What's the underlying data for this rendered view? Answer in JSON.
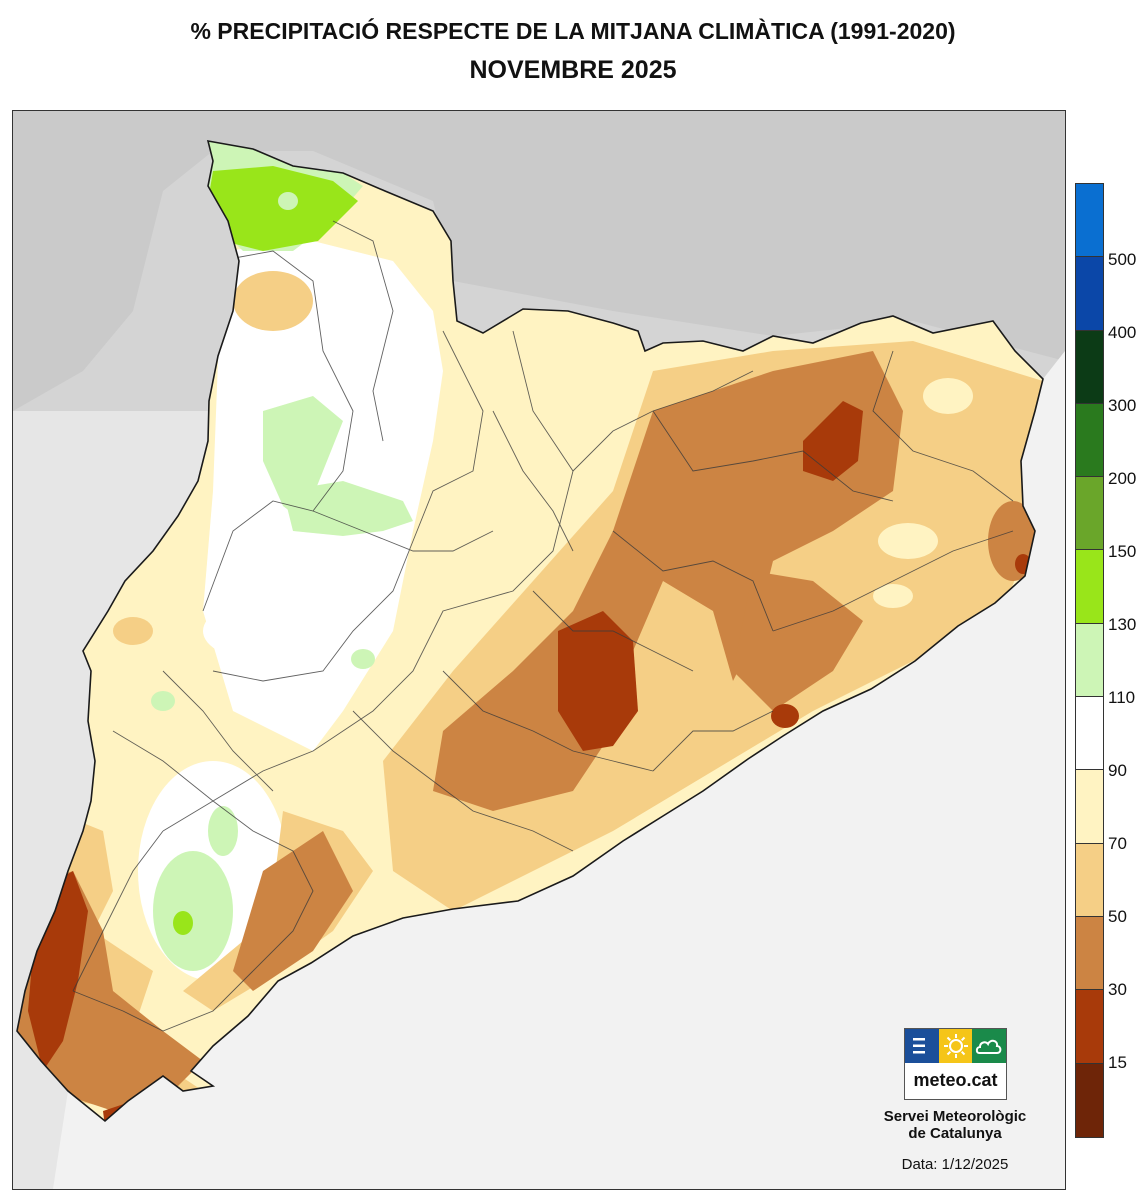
{
  "title": "% PRECIPITACIÓ RESPECTE DE LA MITJANA CLIMÀTICA (1991-2020)",
  "subtitle": "NOVEMBRE 2025",
  "legend": {
    "colors": [
      "#0a6fd1",
      "#0b47a8",
      "#0c3b16",
      "#2a7a1e",
      "#6aa62a",
      "#99e51a",
      "#cdf5b6",
      "#ffffff",
      "#fff3c2",
      "#f5cf86",
      "#cc8443",
      "#a83a0a",
      "#6e2508"
    ],
    "ticks": [
      "500",
      "400",
      "300",
      "200",
      "150",
      "130",
      "110",
      "90",
      "70",
      "50",
      "30",
      "15"
    ]
  },
  "logo": {
    "text": "meteo.cat",
    "colors": [
      "#1b4f9a",
      "#f5c518",
      "#1a8a4a"
    ],
    "icons": [
      "bars-icon",
      "sun-icon",
      "cloud-icon"
    ]
  },
  "organization": {
    "line1": "Servei Meteorològic",
    "line2": "de Catalunya"
  },
  "date_text": "Data: 1/12/2025"
}
